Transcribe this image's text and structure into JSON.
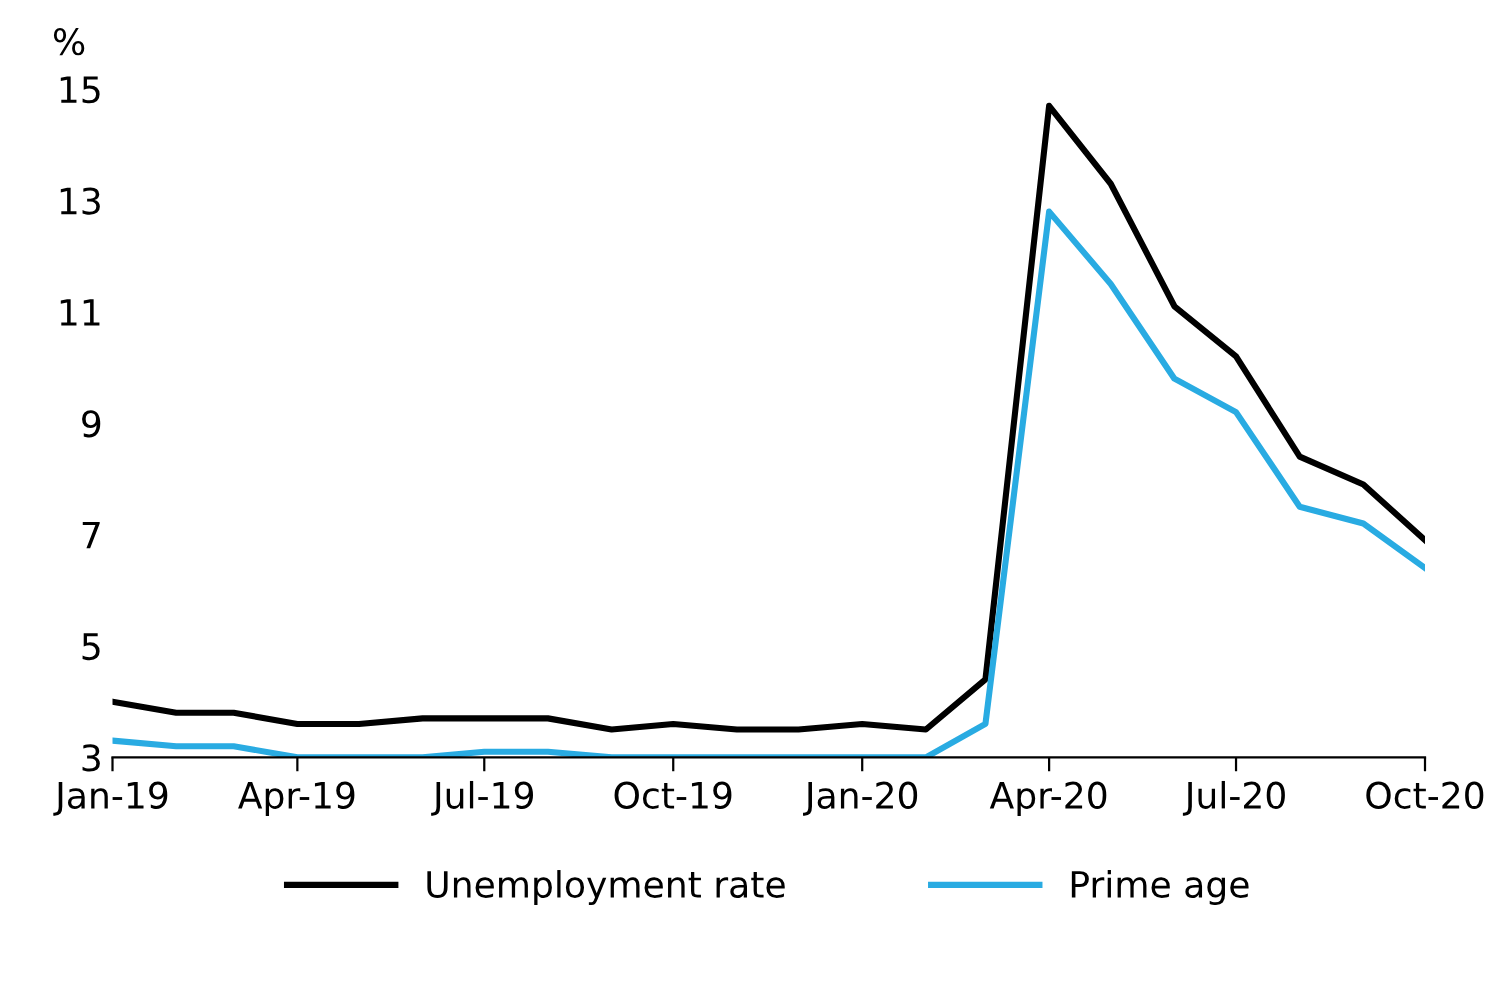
{
  "chart_data": {
    "type": "line",
    "ylabel": "%",
    "x": [
      "2019-01",
      "2019-02",
      "2019-03",
      "2019-04",
      "2019-05",
      "2019-06",
      "2019-07",
      "2019-08",
      "2019-09",
      "2019-10",
      "2019-11",
      "2019-12",
      "2020-01",
      "2020-02",
      "2020-03",
      "2020-04",
      "2020-05",
      "2020-06",
      "2020-07",
      "2020-08",
      "2020-09",
      "2020-10"
    ],
    "series": [
      {
        "name": "Unemployment rate",
        "color": "#000000",
        "values": [
          4.0,
          3.8,
          3.8,
          3.6,
          3.6,
          3.7,
          3.7,
          3.7,
          3.5,
          3.6,
          3.5,
          3.5,
          3.6,
          3.5,
          4.4,
          14.7,
          13.3,
          11.1,
          10.2,
          8.4,
          7.9,
          6.9
        ]
      },
      {
        "name": "Prime age",
        "color": "#29abe2",
        "values": [
          3.3,
          3.2,
          3.2,
          3.0,
          3.0,
          3.0,
          3.1,
          3.1,
          3.0,
          3.0,
          3.0,
          3.0,
          3.0,
          3.0,
          3.6,
          12.8,
          11.5,
          9.8,
          9.2,
          7.5,
          7.2,
          6.4
        ]
      }
    ],
    "xlim": [
      "2019-01",
      "2020-10"
    ],
    "xticks": [
      {
        "value": "2019-01",
        "label": "Jan-19"
      },
      {
        "value": "2019-04",
        "label": "Apr-19"
      },
      {
        "value": "2019-07",
        "label": "Jul-19"
      },
      {
        "value": "2019-10",
        "label": "Oct-19"
      },
      {
        "value": "2020-01",
        "label": "Jan-20"
      },
      {
        "value": "2020-04",
        "label": "Apr-20"
      },
      {
        "value": "2020-07",
        "label": "Jul-20"
      },
      {
        "value": "2020-10",
        "label": "Oct-20"
      }
    ],
    "ylim": [
      3,
      15
    ],
    "yticks": [
      3,
      5,
      7,
      9,
      11,
      13,
      15
    ],
    "grid": false,
    "legend": "bottom",
    "marker": "none",
    "line_style": "solid"
  }
}
